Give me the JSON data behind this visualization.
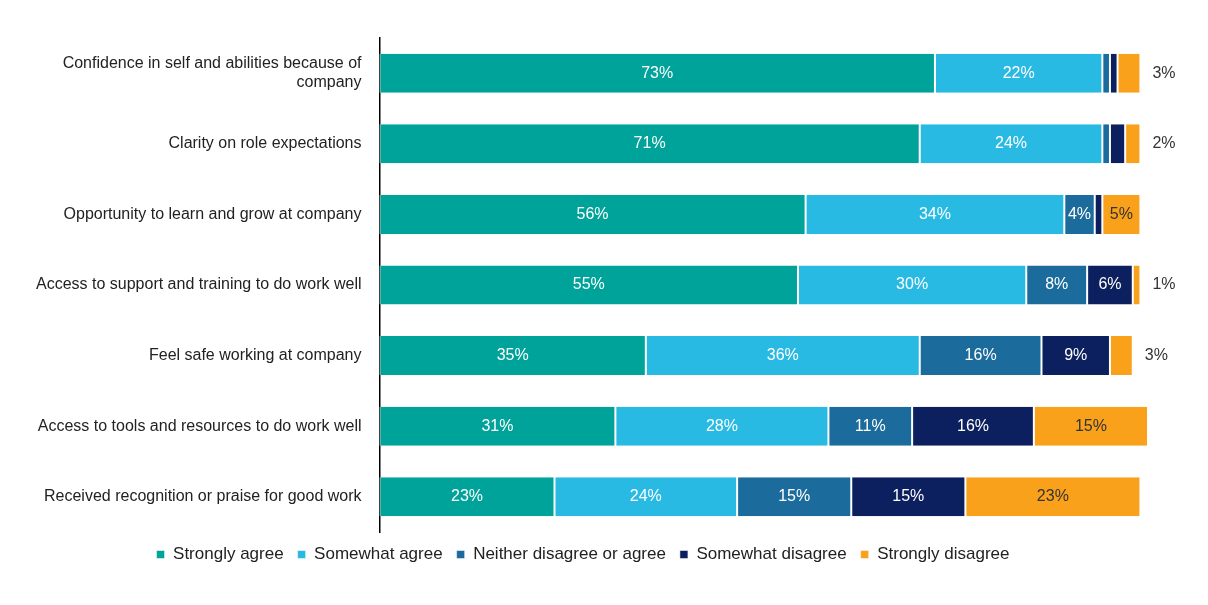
{
  "chart_data": {
    "type": "bar",
    "orientation": "horizontal",
    "stacked": true,
    "legend": "bottom",
    "grid": false,
    "tick_labels": "y",
    "categories": [
      "Confidence in self and abilities because of company",
      "Clarity on role expectations",
      "Opportunity to learn and grow at company",
      "Access to support and training to do work well",
      "Feel safe working at company",
      "Access to tools and resources to do work well",
      "Received recognition or praise for good work"
    ],
    "series": [
      {
        "name": "Strongly agree",
        "color": "#00a39a",
        "values": [
          73,
          71,
          56,
          55,
          35,
          31,
          23
        ],
        "value_labels": [
          "73%",
          "71%",
          "56%",
          "55%",
          "35%",
          "31%",
          "23%"
        ]
      },
      {
        "name": "Somewhat agree",
        "color": "#29bae3",
        "values": [
          22,
          24,
          34,
          30,
          36,
          28,
          24
        ],
        "value_labels": [
          "22%",
          "24%",
          "34%",
          "30%",
          "36%",
          "28%",
          "24%"
        ]
      },
      {
        "name": "Neither disagree or agree",
        "color": "#1b6b9c",
        "values": [
          1,
          1,
          4,
          8,
          16,
          11,
          15
        ],
        "value_labels": [
          null,
          null,
          "4%",
          "8%",
          "16%",
          "11%",
          "15%"
        ]
      },
      {
        "name": "Somewhat disagree",
        "color": "#0c1f5e",
        "values": [
          1,
          2,
          1,
          6,
          9,
          16,
          15
        ],
        "value_labels": [
          null,
          null,
          null,
          "6%",
          "9%",
          "16%",
          "15%"
        ]
      },
      {
        "name": "Strongly disagree",
        "color": "#f9a11b",
        "values": [
          3,
          2,
          5,
          1,
          3,
          15,
          23
        ],
        "value_labels": [
          "3%",
          "2%",
          "5%",
          "1%",
          "3%",
          "15%",
          "23%"
        ]
      }
    ]
  }
}
